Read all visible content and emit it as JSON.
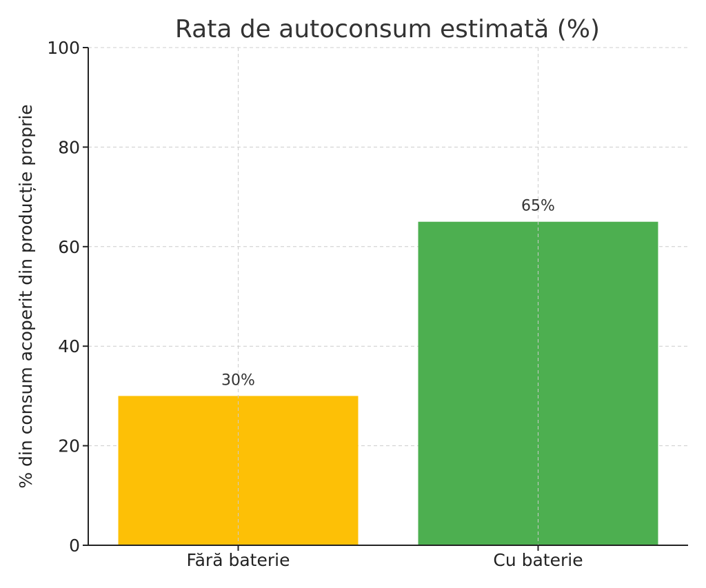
{
  "chart_data": {
    "type": "bar",
    "title": "Rata de autoconsum estimată (%)",
    "xlabel": "",
    "ylabel": "% din consum acoperit din producție proprie",
    "categories": [
      "Fără baterie",
      "Cu baterie"
    ],
    "values": [
      30,
      65
    ],
    "data_labels": [
      "30%",
      "65%"
    ],
    "colors": [
      "#FDC006",
      "#4DAF50"
    ],
    "ylim": [
      0,
      100
    ],
    "yticks": [
      0,
      20,
      40,
      60,
      80,
      100
    ],
    "ytick_labels": [
      "0",
      "20",
      "40",
      "60",
      "80",
      "100"
    ],
    "grid": true
  }
}
